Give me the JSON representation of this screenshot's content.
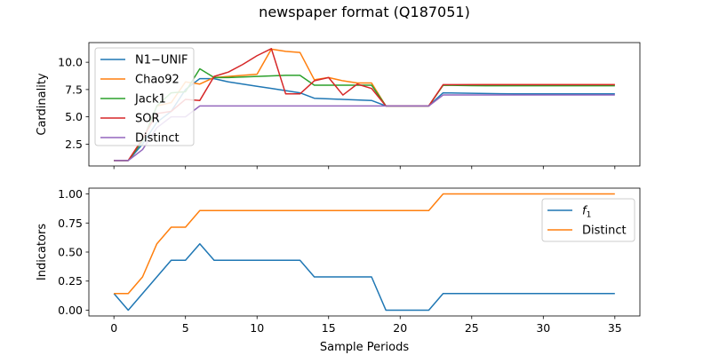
{
  "figure": {
    "title": "newspaper format (Q187051)"
  },
  "chart_data": [
    {
      "type": "line",
      "ylabel": "Cardinality",
      "xlabel": "",
      "xlim": [
        -1.75,
        36.75
      ],
      "ylim": [
        0.5,
        11.8
      ],
      "yticks": [
        2.5,
        5.0,
        7.5,
        10.0
      ],
      "ytick_labels": [
        "2.5",
        "5.0",
        "7.5",
        "10.0"
      ],
      "legend_position": "upper-left",
      "series": [
        {
          "name": "N1−UNIF",
          "color": "#1f77b4",
          "x": [
            0,
            1,
            2,
            3,
            4,
            5,
            6,
            7,
            8,
            9,
            10,
            11,
            12,
            13,
            14,
            15,
            16,
            17,
            18,
            19,
            20,
            21,
            22,
            23,
            24,
            25,
            26,
            27,
            28,
            29,
            30,
            31,
            32,
            33,
            34,
            35
          ],
          "y": [
            1,
            1,
            2.5,
            4.5,
            5.5,
            7.5,
            8.5,
            8.5,
            8.2,
            8.0,
            7.8,
            7.6,
            7.4,
            7.2,
            6.7,
            6.65,
            6.6,
            6.55,
            6.5,
            6.0,
            6.0,
            6.0,
            6.0,
            7.2,
            7.18,
            7.16,
            7.14,
            7.12,
            7.1,
            7.1,
            7.1,
            7.1,
            7.1,
            7.1,
            7.1,
            7.1
          ]
        },
        {
          "name": "Chao92",
          "color": "#ff7f0e",
          "x": [
            0,
            1,
            2,
            3,
            4,
            5,
            6,
            7,
            8,
            9,
            10,
            11,
            12,
            13,
            14,
            15,
            16,
            17,
            18,
            19,
            20,
            21,
            22,
            23,
            24,
            25,
            26,
            27,
            28,
            29,
            30,
            31,
            32,
            33,
            34,
            35
          ],
          "y": [
            1,
            1,
            2.8,
            6.0,
            6.3,
            8.2,
            8.0,
            8.6,
            8.7,
            8.8,
            8.9,
            11.2,
            11.0,
            10.9,
            8.4,
            8.6,
            8.3,
            8.1,
            8.1,
            6.0,
            6.0,
            6.0,
            6.0,
            7.9,
            7.92,
            7.94,
            7.95,
            7.95,
            7.95,
            7.95,
            7.95,
            7.95,
            7.95,
            7.95,
            7.95,
            7.95
          ]
        },
        {
          "name": "Jack1",
          "color": "#2ca02c",
          "x": [
            0,
            1,
            2,
            3,
            4,
            5,
            6,
            7,
            8,
            9,
            10,
            11,
            12,
            13,
            14,
            15,
            16,
            17,
            18,
            19,
            20,
            21,
            22,
            23,
            24,
            25,
            26,
            27,
            28,
            29,
            30,
            31,
            32,
            33,
            34,
            35
          ],
          "y": [
            1,
            1,
            2.8,
            6.0,
            7.2,
            7.3,
            9.4,
            8.6,
            8.6,
            8.65,
            8.7,
            8.75,
            8.8,
            8.8,
            7.9,
            7.9,
            7.9,
            7.9,
            7.9,
            6.0,
            6.0,
            6.0,
            6.0,
            7.9,
            7.88,
            7.86,
            7.85,
            7.85,
            7.85,
            7.85,
            7.85,
            7.85,
            7.85,
            7.85,
            7.85,
            7.85
          ]
        },
        {
          "name": "SOR",
          "color": "#d62728",
          "x": [
            0,
            1,
            2,
            3,
            4,
            5,
            6,
            7,
            8,
            9,
            10,
            11,
            12,
            13,
            14,
            15,
            16,
            17,
            18,
            19,
            20,
            21,
            22,
            23,
            24,
            25,
            26,
            27,
            28,
            29,
            30,
            31,
            32,
            33,
            34,
            35
          ],
          "y": [
            1,
            1,
            3.0,
            5.3,
            5.5,
            6.6,
            6.5,
            8.7,
            9.1,
            9.8,
            10.6,
            11.25,
            7.1,
            7.1,
            8.3,
            8.6,
            7.0,
            8.0,
            7.6,
            6.0,
            6.0,
            6.0,
            6.0,
            7.95,
            7.95,
            7.95,
            7.95,
            7.95,
            7.95,
            7.95,
            7.95,
            7.95,
            7.95,
            7.95,
            7.95,
            7.95
          ]
        },
        {
          "name": "Distinct",
          "color": "#9467bd",
          "x": [
            0,
            1,
            2,
            3,
            4,
            5,
            6,
            7,
            8,
            9,
            10,
            11,
            12,
            13,
            14,
            15,
            16,
            17,
            18,
            19,
            20,
            21,
            22,
            23,
            24,
            25,
            26,
            27,
            28,
            29,
            30,
            31,
            32,
            33,
            34,
            35
          ],
          "y": [
            1,
            1,
            2,
            4,
            5,
            5,
            6,
            6,
            6,
            6,
            6,
            6,
            6,
            6,
            6,
            6,
            6,
            6,
            6,
            6,
            6,
            6,
            6,
            7,
            7,
            7,
            7,
            7,
            7,
            7,
            7,
            7,
            7,
            7,
            7,
            7
          ]
        }
      ]
    },
    {
      "type": "line",
      "ylabel": "Indicators",
      "xlabel": "Sample Periods",
      "xlim": [
        -1.75,
        36.75
      ],
      "ylim": [
        -0.05,
        1.05
      ],
      "xticks": [
        0,
        5,
        10,
        15,
        20,
        25,
        30,
        35
      ],
      "xtick_labels": [
        "0",
        "5",
        "10",
        "15",
        "20",
        "25",
        "30",
        "35"
      ],
      "yticks": [
        0.0,
        0.25,
        0.5,
        0.75,
        1.0
      ],
      "ytick_labels": [
        "0.00",
        "0.25",
        "0.50",
        "0.75",
        "1.00"
      ],
      "legend_position": "upper-right",
      "series": [
        {
          "name": "f",
          "name_sub": "1",
          "color": "#1f77b4",
          "x": [
            0,
            1,
            2,
            3,
            4,
            5,
            6,
            7,
            8,
            9,
            10,
            11,
            12,
            13,
            14,
            15,
            16,
            17,
            18,
            19,
            20,
            21,
            22,
            23,
            24,
            25,
            26,
            27,
            28,
            29,
            30,
            31,
            32,
            33,
            34,
            35
          ],
          "y": [
            0.143,
            0,
            0.143,
            0.286,
            0.429,
            0.429,
            0.571,
            0.429,
            0.429,
            0.429,
            0.429,
            0.429,
            0.429,
            0.429,
            0.286,
            0.286,
            0.286,
            0.286,
            0.286,
            0,
            0,
            0,
            0,
            0.143,
            0.143,
            0.143,
            0.143,
            0.143,
            0.143,
            0.143,
            0.143,
            0.143,
            0.143,
            0.143,
            0.143,
            0.143
          ]
        },
        {
          "name": "Distinct",
          "color": "#ff7f0e",
          "x": [
            0,
            1,
            2,
            3,
            4,
            5,
            6,
            7,
            8,
            9,
            10,
            11,
            12,
            13,
            14,
            15,
            16,
            17,
            18,
            19,
            20,
            21,
            22,
            23,
            24,
            25,
            26,
            27,
            28,
            29,
            30,
            31,
            32,
            33,
            34,
            35
          ],
          "y": [
            0.143,
            0.143,
            0.286,
            0.571,
            0.714,
            0.714,
            0.857,
            0.857,
            0.857,
            0.857,
            0.857,
            0.857,
            0.857,
            0.857,
            0.857,
            0.857,
            0.857,
            0.857,
            0.857,
            0.857,
            0.857,
            0.857,
            0.857,
            1,
            1,
            1,
            1,
            1,
            1,
            1,
            1,
            1,
            1,
            1,
            1,
            1
          ]
        }
      ]
    }
  ]
}
